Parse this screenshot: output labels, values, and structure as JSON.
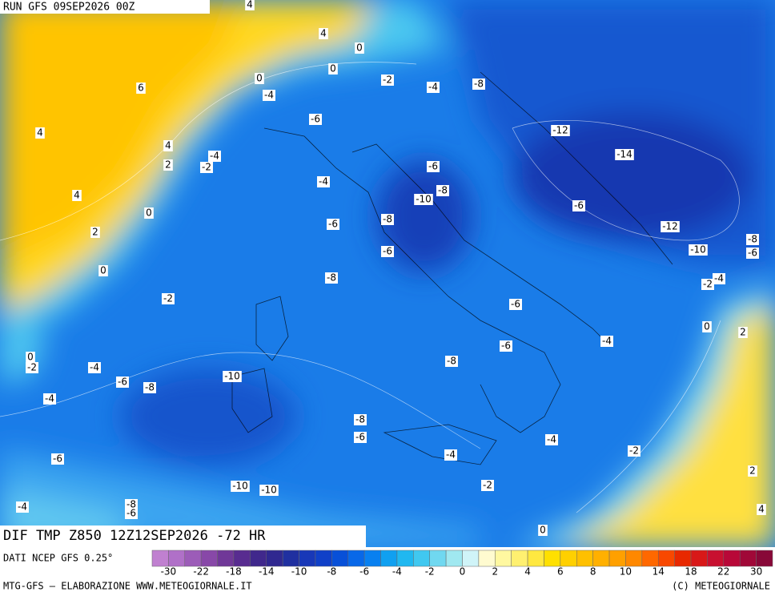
{
  "header": {
    "run": "RUN GFS 09SEP2026 00Z"
  },
  "footer": {
    "field": "DIF TMP Z850 12Z12SEP2026 -72 HR",
    "source": "DATI NCEP GFS 0.25°",
    "credit_left": "MTG-GFS — ELABORAZIONE WWW.METEOGIORNALE.IT",
    "credit_right": "(C) METEOGIORNALE"
  },
  "legend": {
    "colors": [
      "#c080d0",
      "#b070c8",
      "#9c5cb8",
      "#8848a8",
      "#703898",
      "#582c90",
      "#40288c",
      "#302890",
      "#2030a0",
      "#1838b8",
      "#1040c8",
      "#0850d8",
      "#0868e8",
      "#0880f0",
      "#10a0f0",
      "#20b8f0",
      "#40c8f0",
      "#70d8f0",
      "#a0e8f0",
      "#d0f4f8",
      "#fffbd0",
      "#fff8a0",
      "#fff070",
      "#ffe840",
      "#ffe000",
      "#ffd000",
      "#ffc000",
      "#ffb000",
      "#ffa000",
      "#ff8800",
      "#ff6800",
      "#f84800",
      "#e82800",
      "#d81818",
      "#c81030",
      "#b80838",
      "#a00838",
      "#880838"
    ],
    "labels": [
      "-30",
      "-22",
      "-18",
      "-14",
      "-10",
      "-8",
      "-6",
      "-4",
      "-2",
      "0",
      "2",
      "4",
      "6",
      "8",
      "10",
      "14",
      "18",
      "22",
      "30"
    ]
  },
  "contour_labels": [
    "4",
    "4",
    "0",
    "0",
    "0",
    "-2",
    "-4",
    "-8",
    "6",
    "-4",
    "-6",
    "-12",
    "4",
    "4",
    "-14",
    "-4",
    "2",
    "-2",
    "-6",
    "-4",
    "-8",
    "4",
    "-10",
    "-6",
    "0",
    "-8",
    "-6",
    "-12",
    "2",
    "-8",
    "-10",
    "-6",
    "-6",
    "0",
    "-8",
    "-2",
    "-4",
    "-2",
    "-6",
    "0",
    "2",
    "-4",
    "-6",
    "0",
    "-2",
    "-8",
    "-4",
    "-10",
    "-6",
    "-8",
    "-4",
    "-8",
    "-6",
    "-4",
    "-2",
    "-6",
    "-4",
    "2",
    "-2",
    "-10",
    "-10",
    "-4",
    "-8",
    "-6",
    "4",
    "0"
  ]
}
